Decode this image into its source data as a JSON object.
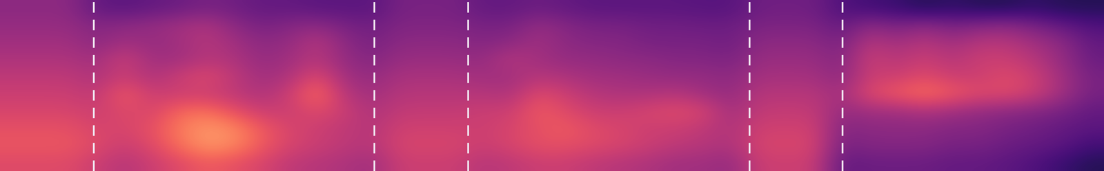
{
  "chart_data": {
    "type": "heatmap",
    "tick_labels": false,
    "xlim": [
      0,
      100
    ],
    "ylim": [
      0,
      10
    ],
    "zlim": [
      0,
      1
    ],
    "cells": [
      [
        0.4,
        0.4,
        0.4,
        0.3,
        0.28,
        0.3,
        0.32,
        0.35,
        0.33,
        0.3,
        0.3,
        0.28,
        0.28,
        0.28,
        0.35,
        0.35,
        0.35,
        0.3,
        0.3,
        0.32,
        0.3,
        0.28,
        0.28,
        0.28,
        0.28,
        0.27,
        0.27,
        0.33,
        0.33,
        0.33,
        0.25,
        0.22,
        0.2,
        0.15,
        0.18,
        0.15,
        0.15,
        0.18,
        0.15,
        0.15
      ],
      [
        0.42,
        0.42,
        0.42,
        0.38,
        0.4,
        0.42,
        0.45,
        0.48,
        0.4,
        0.35,
        0.38,
        0.4,
        0.35,
        0.33,
        0.37,
        0.37,
        0.37,
        0.35,
        0.35,
        0.42,
        0.38,
        0.35,
        0.35,
        0.33,
        0.33,
        0.32,
        0.32,
        0.36,
        0.36,
        0.36,
        0.3,
        0.4,
        0.35,
        0.4,
        0.35,
        0.38,
        0.4,
        0.35,
        0.3,
        0.25
      ],
      [
        0.45,
        0.45,
        0.45,
        0.4,
        0.45,
        0.42,
        0.45,
        0.5,
        0.45,
        0.4,
        0.42,
        0.5,
        0.4,
        0.35,
        0.4,
        0.4,
        0.4,
        0.38,
        0.4,
        0.45,
        0.4,
        0.38,
        0.38,
        0.35,
        0.35,
        0.35,
        0.33,
        0.4,
        0.4,
        0.4,
        0.35,
        0.5,
        0.45,
        0.5,
        0.45,
        0.5,
        0.5,
        0.45,
        0.4,
        0.3
      ],
      [
        0.48,
        0.48,
        0.48,
        0.45,
        0.55,
        0.45,
        0.45,
        0.5,
        0.48,
        0.42,
        0.45,
        0.5,
        0.42,
        0.38,
        0.43,
        0.43,
        0.43,
        0.42,
        0.5,
        0.45,
        0.42,
        0.42,
        0.4,
        0.4,
        0.38,
        0.38,
        0.36,
        0.43,
        0.43,
        0.43,
        0.38,
        0.55,
        0.5,
        0.55,
        0.5,
        0.55,
        0.55,
        0.5,
        0.42,
        0.32
      ],
      [
        0.52,
        0.52,
        0.52,
        0.48,
        0.55,
        0.48,
        0.55,
        0.6,
        0.52,
        0.45,
        0.48,
        0.6,
        0.45,
        0.42,
        0.47,
        0.47,
        0.47,
        0.45,
        0.45,
        0.5,
        0.48,
        0.45,
        0.45,
        0.43,
        0.42,
        0.42,
        0.4,
        0.46,
        0.46,
        0.46,
        0.4,
        0.55,
        0.55,
        0.6,
        0.55,
        0.55,
        0.6,
        0.55,
        0.45,
        0.35
      ],
      [
        0.55,
        0.55,
        0.55,
        0.52,
        0.65,
        0.55,
        0.55,
        0.55,
        0.52,
        0.48,
        0.55,
        0.7,
        0.5,
        0.45,
        0.5,
        0.5,
        0.5,
        0.5,
        0.48,
        0.6,
        0.55,
        0.5,
        0.48,
        0.48,
        0.5,
        0.45,
        0.42,
        0.5,
        0.5,
        0.5,
        0.45,
        0.6,
        0.65,
        0.7,
        0.65,
        0.6,
        0.6,
        0.55,
        0.45,
        0.35
      ],
      [
        0.58,
        0.58,
        0.58,
        0.55,
        0.6,
        0.58,
        0.68,
        0.7,
        0.62,
        0.55,
        0.55,
        0.6,
        0.55,
        0.48,
        0.53,
        0.53,
        0.53,
        0.55,
        0.55,
        0.65,
        0.6,
        0.55,
        0.55,
        0.58,
        0.6,
        0.58,
        0.45,
        0.53,
        0.53,
        0.53,
        0.42,
        0.45,
        0.45,
        0.48,
        0.45,
        0.42,
        0.4,
        0.38,
        0.35,
        0.3
      ],
      [
        0.62,
        0.62,
        0.62,
        0.58,
        0.58,
        0.62,
        0.72,
        0.78,
        0.75,
        0.65,
        0.58,
        0.55,
        0.52,
        0.5,
        0.56,
        0.56,
        0.56,
        0.55,
        0.58,
        0.62,
        0.65,
        0.6,
        0.58,
        0.55,
        0.55,
        0.52,
        0.48,
        0.56,
        0.56,
        0.56,
        0.38,
        0.4,
        0.4,
        0.4,
        0.38,
        0.38,
        0.35,
        0.33,
        0.3,
        0.28
      ],
      [
        0.64,
        0.64,
        0.64,
        0.6,
        0.55,
        0.6,
        0.7,
        0.78,
        0.75,
        0.65,
        0.58,
        0.55,
        0.52,
        0.5,
        0.58,
        0.58,
        0.58,
        0.55,
        0.58,
        0.62,
        0.62,
        0.6,
        0.58,
        0.55,
        0.52,
        0.5,
        0.48,
        0.58,
        0.58,
        0.58,
        0.35,
        0.38,
        0.38,
        0.38,
        0.35,
        0.35,
        0.32,
        0.3,
        0.28,
        0.22
      ],
      [
        0.6,
        0.6,
        0.6,
        0.55,
        0.5,
        0.55,
        0.6,
        0.65,
        0.62,
        0.58,
        0.52,
        0.5,
        0.48,
        0.45,
        0.55,
        0.55,
        0.55,
        0.5,
        0.52,
        0.55,
        0.55,
        0.52,
        0.5,
        0.48,
        0.45,
        0.45,
        0.42,
        0.55,
        0.55,
        0.55,
        0.3,
        0.32,
        0.32,
        0.32,
        0.3,
        0.3,
        0.28,
        0.25,
        0.2,
        0.15
      ]
    ],
    "boundaries": {
      "x": [
        8.5,
        33.9,
        42.4,
        67.9,
        76.3
      ],
      "color": "#f0e6f0",
      "line_style": "dashed"
    }
  }
}
